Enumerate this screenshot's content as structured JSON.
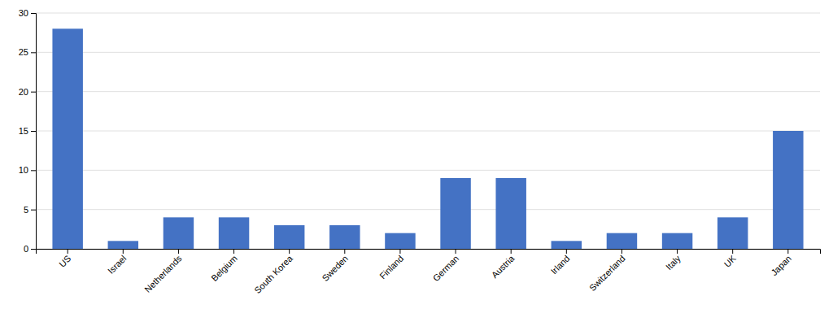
{
  "chart_data": {
    "type": "bar",
    "categories": [
      "US",
      "Israel",
      "Netherlands",
      "Belgium",
      "South Korea",
      "Sweden",
      "Finland",
      "German",
      "Austria",
      "Irland",
      "Switzerland",
      "Italy",
      "UK",
      "Japan"
    ],
    "values": [
      28,
      1,
      4,
      4,
      3,
      3,
      2,
      9,
      9,
      1,
      2,
      2,
      4,
      15
    ],
    "color": "#4472C4",
    "ylim": [
      0,
      30
    ],
    "yticks": [
      0,
      5,
      10,
      15,
      20,
      25,
      30
    ],
    "grid": true
  }
}
